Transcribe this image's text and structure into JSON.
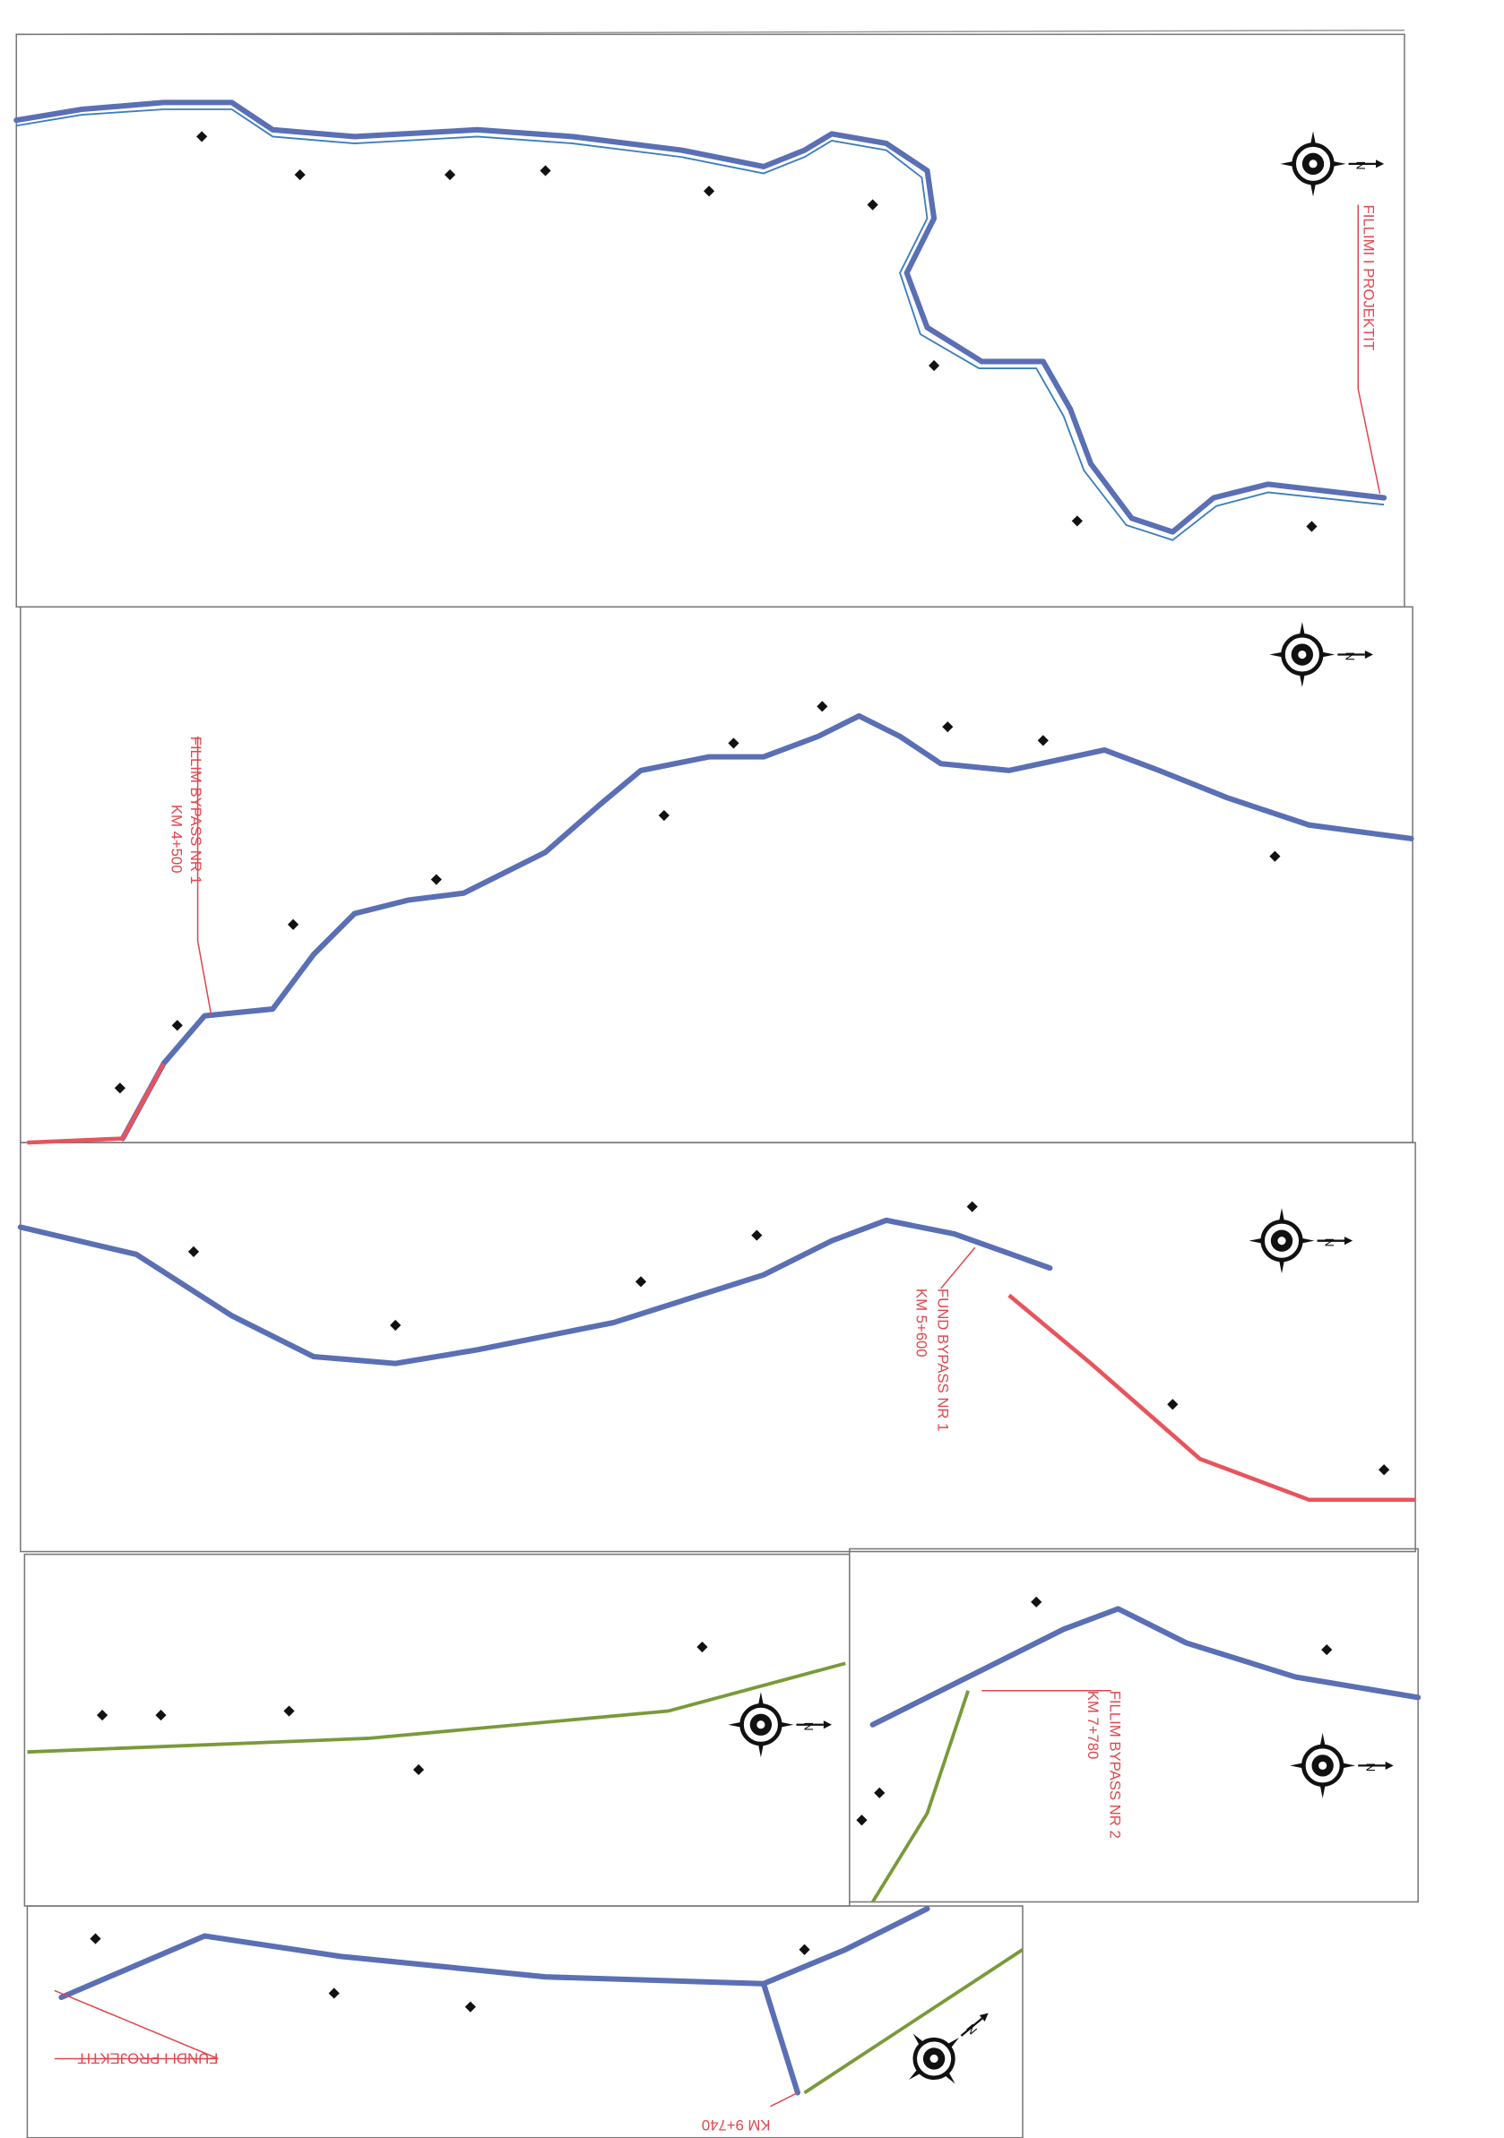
{
  "compass_label": "N",
  "sheets": [
    {
      "labels": [
        "FILLIMI I PROJEKTIT"
      ]
    },
    {
      "labels": [
        "FILLIM BYPASS NR 1",
        "KM 4+500"
      ]
    },
    {
      "labels": [
        "FUND BYPASS NR 1",
        "KM 5+600"
      ]
    },
    {
      "labels": []
    },
    {
      "labels": [
        "FILLIM BYPASS NR 2",
        "KM 7+780"
      ]
    },
    {
      "labels": [
        "FUNDI I PROJEKTIT",
        "KM 9+740"
      ]
    }
  ]
}
